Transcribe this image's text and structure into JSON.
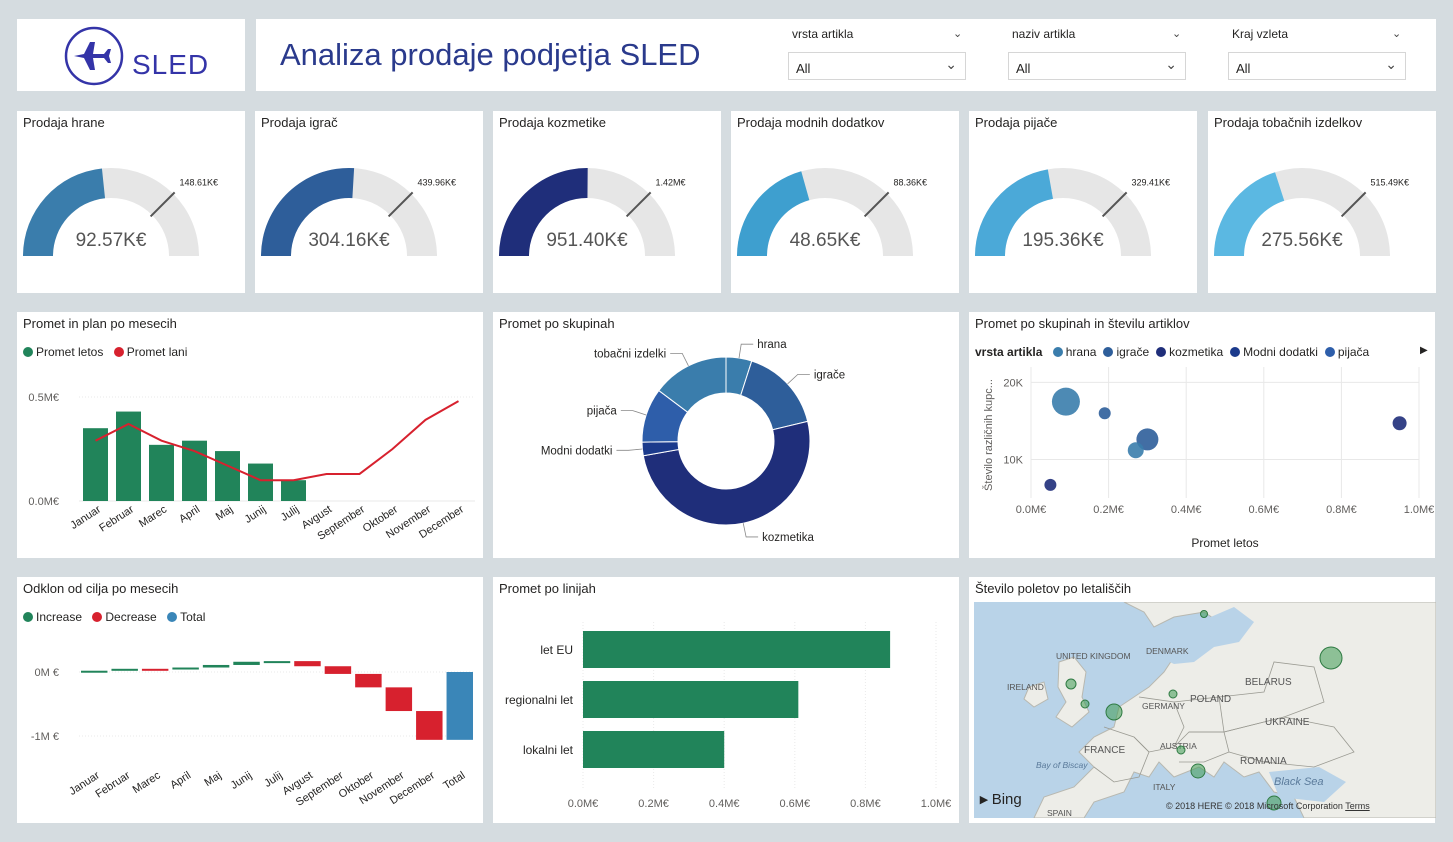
{
  "header": {
    "logo_text": "SLED",
    "title": "Analiza prodaje podjetja SLED"
  },
  "slicers": [
    {
      "label": "vrsta artikla",
      "value": "All"
    },
    {
      "label": "naziv artikla",
      "value": "All"
    },
    {
      "label": "Kraj vzleta",
      "value": "All"
    }
  ],
  "gauges": [
    {
      "title": "Prodaja hrane",
      "value_label": "92.57K€",
      "target_label": "148.61K€",
      "value": 92.57,
      "target": 148.61,
      "color": "#3A7DAC"
    },
    {
      "title": "Prodaja igrač",
      "value_label": "304.16K€",
      "target_label": "439.96K€",
      "value": 304.16,
      "target": 439.96,
      "color": "#2E5E9A"
    },
    {
      "title": "Prodaja kozmetike",
      "value_label": "951.40K€",
      "target_label": "1.42M€",
      "value": 951.4,
      "target": 1420,
      "color": "#1F2E7A"
    },
    {
      "title": "Prodaja modnih dodatkov",
      "value_label": "48.65K€",
      "target_label": "88.36K€",
      "value": 48.65,
      "target": 88.36,
      "color": "#3E9FCF"
    },
    {
      "title": "Prodaja pijače",
      "value_label": "195.36K€",
      "target_label": "329.41K€",
      "value": 195.36,
      "target": 329.41,
      "color": "#4BA9D8"
    },
    {
      "title": "Prodaja tobačnih izdelkov",
      "value_label": "275.56K€",
      "target_label": "515.49K€",
      "value": 275.56,
      "target": 515.49,
      "color": "#5BB8E2"
    }
  ],
  "monthly_chart": {
    "title": "Promet in plan po mesecih",
    "legend": [
      {
        "name": "Promet letos",
        "color": "#21845A"
      },
      {
        "name": "Promet lani",
        "color": "#D7212E"
      }
    ],
    "y_ticks": [
      "0.5M€",
      "0.0M€"
    ],
    "months": [
      "Januar",
      "Februar",
      "Marec",
      "April",
      "Maj",
      "Junij",
      "Julij",
      "Avgust",
      "September",
      "Oktober",
      "November",
      "December"
    ]
  },
  "donut_chart": {
    "title": "Promet po skupinah",
    "labels": [
      "hrana",
      "igrače",
      "kozmetika",
      "Modni dodatki",
      "pijača",
      "tobačni izdelki"
    ]
  },
  "scatter_chart": {
    "title": "Promet po skupinah in številu artiklov",
    "legend_title": "vrsta artikla",
    "legend": [
      {
        "name": "hrana",
        "color": "#3A7DAC"
      },
      {
        "name": "igrače",
        "color": "#2E5E9A"
      },
      {
        "name": "kozmetika",
        "color": "#1F2E7A"
      },
      {
        "name": "Modni dodatki",
        "color": "#1B3A8C"
      },
      {
        "name": "pijača",
        "color": "#2E5EAA"
      }
    ],
    "y_ticks": [
      "20K",
      "10K"
    ],
    "x_ticks": [
      "0.0M€",
      "0.2M€",
      "0.4M€",
      "0.6M€",
      "0.8M€",
      "1.0M€"
    ],
    "xlabel": "Promet letos",
    "ylabel": "Število različnih kupc..."
  },
  "waterfall_chart": {
    "title": "Odklon od cilja po mesecih",
    "legend": [
      {
        "name": "Increase",
        "color": "#21845A"
      },
      {
        "name": "Decrease",
        "color": "#D7212E"
      },
      {
        "name": "Total",
        "color": "#3A86B8"
      }
    ],
    "y_ticks": [
      "0M €",
      "-1M €"
    ],
    "categories": [
      "Januar",
      "Februar",
      "Marec",
      "April",
      "Maj",
      "Junij",
      "Julij",
      "Avgust",
      "September",
      "Oktober",
      "November",
      "December",
      "Total"
    ]
  },
  "bar_chart": {
    "title": "Promet po linijah",
    "categories": [
      "let EU",
      "regionalni let",
      "lokalni let"
    ],
    "x_ticks": [
      "0.0M€",
      "0.2M€",
      "0.4M€",
      "0.6M€",
      "0.8M€",
      "1.0M€"
    ]
  },
  "map": {
    "title": "Število poletov po letališčih",
    "labels": [
      "UNITED KINGDOM",
      "IRELAND",
      "DENMARK",
      "GERMANY",
      "POLAND",
      "BELARUS",
      "UKRAINE",
      "FRANCE",
      "AUSTRIA",
      "ITALY",
      "ROMANIA",
      "Black Sea",
      "Bay of Biscay",
      "SPAIN"
    ],
    "bing": "Bing",
    "copyright": "© 2018 HERE © 2018 Microsoft Corporation",
    "terms": "Terms"
  },
  "chart_data": [
    {
      "type": "line",
      "title": "Promet in plan po mesecih",
      "categories": [
        "Januar",
        "Februar",
        "Marec",
        "April",
        "Maj",
        "Junij",
        "Julij",
        "Avgust",
        "September",
        "Oktober",
        "November",
        "December"
      ],
      "series": [
        {
          "name": "Promet letos",
          "kind": "bar",
          "values": [
            0.35,
            0.43,
            0.27,
            0.29,
            0.24,
            0.18,
            0.1,
            null,
            null,
            null,
            null,
            null
          ]
        },
        {
          "name": "Promet lani",
          "kind": "line",
          "values": [
            0.29,
            0.37,
            0.29,
            0.24,
            0.17,
            0.1,
            0.1,
            0.13,
            0.13,
            0.25,
            0.39,
            0.48
          ]
        }
      ],
      "ylim": [
        0,
        0.55
      ]
    },
    {
      "type": "pie",
      "title": "Promet po skupinah",
      "categories": [
        "hrana",
        "igrače",
        "kozmetika",
        "Modni dodatki",
        "pijača",
        "tobačni izdelki"
      ],
      "values": [
        92.57,
        304.16,
        951.4,
        48.65,
        195.36,
        275.56
      ]
    },
    {
      "type": "scatter",
      "title": "Promet po skupinah in številu artiklov",
      "xlabel": "Promet letos",
      "ylabel": "Število različnih kupc...",
      "xlim": [
        0,
        1.0
      ],
      "ylim": [
        5000,
        22000
      ],
      "points": [
        {
          "x": 0.09,
          "y": 17500,
          "size": 14,
          "color": "#3A7DAC"
        },
        {
          "x": 0.19,
          "y": 16000,
          "size": 6,
          "color": "#2E5E9A"
        },
        {
          "x": 0.3,
          "y": 12600,
          "size": 11,
          "color": "#2E5E9A"
        },
        {
          "x": 0.27,
          "y": 11200,
          "size": 8,
          "color": "#3A7DAC"
        },
        {
          "x": 0.95,
          "y": 14700,
          "size": 7,
          "color": "#1F2E7A"
        },
        {
          "x": 0.05,
          "y": 6700,
          "size": 6,
          "color": "#1F2E7A"
        }
      ]
    },
    {
      "type": "bar",
      "title": "Odklon od cilja po mesecih",
      "categories": [
        "Januar",
        "Februar",
        "Marec",
        "April",
        "Maj",
        "Junij",
        "Julij",
        "Avgust",
        "September",
        "Oktober",
        "November",
        "December",
        "Total"
      ],
      "values": [
        0.02,
        0.03,
        -0.01,
        0.03,
        0.04,
        0.05,
        0.01,
        -0.08,
        -0.12,
        -0.21,
        -0.37,
        -0.45,
        -1.06
      ],
      "ylim": [
        -1.2,
        0.2
      ]
    },
    {
      "type": "bar",
      "title": "Promet po linijah",
      "categories": [
        "let EU",
        "regionalni let",
        "lokalni let"
      ],
      "values": [
        0.87,
        0.61,
        0.4
      ],
      "xlim": [
        0,
        1.0
      ]
    }
  ]
}
